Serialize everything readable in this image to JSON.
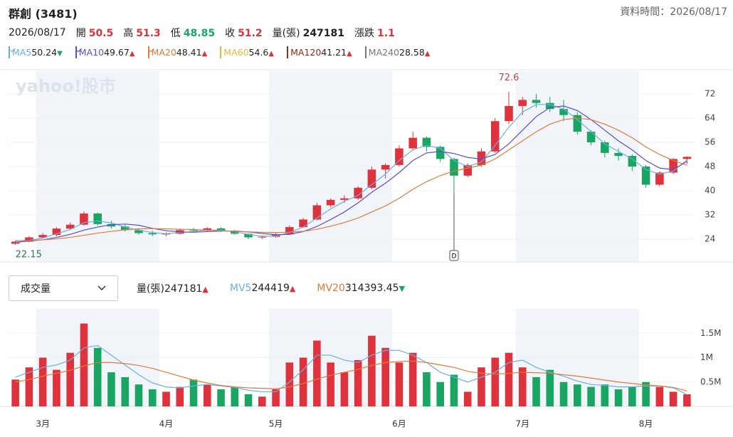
{
  "header": {
    "title": "群創 (3481)",
    "data_time": "資料時間：2026/08/17",
    "date": "2026/08/17",
    "quotes": [
      {
        "label": "開",
        "value": 50.5,
        "color": "#e0323c"
      },
      {
        "label": "高",
        "value": 51.3,
        "color": "#e0323c"
      },
      {
        "label": "低",
        "value": 48.85,
        "color": "#19a663"
      },
      {
        "label": "收",
        "value": 51.2,
        "color": "#e0323c"
      },
      {
        "label": "量(張)",
        "value": 247181,
        "color": "#222"
      },
      {
        "label": "漲跌",
        "value": 1.1,
        "color": "#e0323c"
      }
    ]
  },
  "chart_data": [
    {
      "type": "candlestick",
      "watermark": "yahoo!股市",
      "up_color": "#e0323c",
      "down_color": "#19a663",
      "grid": true,
      "ylim": [
        16.5,
        79.5
      ],
      "yticks": [
        24,
        32,
        40,
        48,
        56,
        64,
        72
      ],
      "candles": [
        [
          22.5,
          23.5,
          22.15,
          23.2
        ],
        [
          23.2,
          25,
          23,
          24.6
        ],
        [
          24.6,
          26,
          24.2,
          25.4
        ],
        [
          25.4,
          28,
          25,
          27.5
        ],
        [
          27.5,
          29.5,
          27,
          28.8
        ],
        [
          28.8,
          33.2,
          28.5,
          32.5
        ],
        [
          32.5,
          32.8,
          28.5,
          29
        ],
        [
          29,
          30,
          27.5,
          28.2
        ],
        [
          28.2,
          28.8,
          26.5,
          27
        ],
        [
          27,
          27.5,
          25.5,
          26
        ],
        [
          26,
          26.8,
          25,
          25.6
        ],
        [
          25.6,
          26.2,
          25,
          25.8
        ],
        [
          25.8,
          27.5,
          25.6,
          27
        ],
        [
          27,
          27.8,
          26.2,
          26.8
        ],
        [
          26.8,
          28,
          26.5,
          27.6
        ],
        [
          27.6,
          28,
          26.4,
          26.8
        ],
        [
          26.8,
          27,
          25.5,
          25.8
        ],
        [
          25.8,
          26,
          24,
          24.6
        ],
        [
          24.6,
          25.2,
          24,
          24.8
        ],
        [
          24.8,
          26,
          24.5,
          25.6
        ],
        [
          25.6,
          28.5,
          25.4,
          28
        ],
        [
          28,
          31,
          27.8,
          30.5
        ],
        [
          30.5,
          36,
          30.2,
          35.2
        ],
        [
          35.2,
          37.5,
          34.5,
          37
        ],
        [
          37,
          38.5,
          36,
          37.5
        ],
        [
          37.5,
          41.5,
          37,
          41
        ],
        [
          41,
          48,
          40.5,
          47
        ],
        [
          47,
          49,
          44,
          48.5
        ],
        [
          48.5,
          55,
          48,
          54
        ],
        [
          54,
          59.5,
          53.5,
          57.5
        ],
        [
          57.5,
          58,
          53,
          54.5
        ],
        [
          54.5,
          55,
          49.5,
          50.5
        ],
        [
          50.5,
          51,
          39.5,
          45
        ],
        [
          45,
          49,
          44.5,
          48.5
        ],
        [
          48.5,
          54,
          48,
          53
        ],
        [
          53,
          64,
          52.5,
          63
        ],
        [
          63,
          72.6,
          62,
          68
        ],
        [
          68,
          71,
          65,
          70
        ],
        [
          70,
          72,
          67.5,
          69
        ],
        [
          69,
          71,
          66,
          67
        ],
        [
          67,
          70,
          63,
          65
        ],
        [
          65,
          66,
          58.5,
          59.5
        ],
        [
          59.5,
          60,
          55,
          56
        ],
        [
          56,
          56.5,
          51,
          52.5
        ],
        [
          52.5,
          54,
          50,
          51.5
        ],
        [
          51.5,
          52,
          46.5,
          48
        ],
        [
          48,
          48.5,
          41,
          42
        ],
        [
          42,
          46.5,
          41.5,
          46
        ],
        [
          46,
          50.8,
          45.5,
          50.5
        ],
        [
          50.5,
          51.3,
          48.85,
          51.2
        ]
      ],
      "events": [
        {
          "index": 32,
          "label": "D"
        }
      ],
      "series": [
        {
          "name": "MA5",
          "color": "#6ab0e0",
          "checked": true,
          "arrow": "▼",
          "values": [
            22.8,
            23.6,
            24.4,
            25.8,
            27.2,
            29.5,
            30,
            29.4,
            28,
            27,
            26.2,
            25.8,
            26.2,
            26.5,
            27,
            27,
            26.5,
            25.6,
            25,
            25,
            26.2,
            28,
            31,
            34,
            36.5,
            38.5,
            42,
            45.5,
            50,
            53.5,
            55,
            54,
            50,
            48,
            49.5,
            55,
            61,
            66,
            68.5,
            68.5,
            67,
            63.5,
            59.5,
            55.5,
            53,
            50.5,
            47,
            45.5,
            46.5,
            50.24
          ]
        },
        {
          "name": "MA10",
          "color": "#5a4fcf",
          "checked": true,
          "arrow": "▲",
          "values": [
            23,
            23.4,
            23.8,
            24.6,
            25.6,
            27,
            28,
            28.8,
            29,
            28.6,
            27.6,
            26.8,
            26.4,
            26.3,
            26.5,
            26.7,
            26.7,
            26.4,
            25.9,
            25.5,
            25.6,
            26.5,
            28.2,
            30.5,
            33,
            36,
            39.5,
            42.5,
            46,
            50,
            52.5,
            53,
            52.3,
            51,
            50.5,
            52,
            55.5,
            60,
            64.5,
            67.5,
            68,
            66.5,
            63.5,
            60,
            56.5,
            53.5,
            50,
            47.5,
            47,
            49.67
          ]
        },
        {
          "name": "MA20",
          "color": "#e07a3a",
          "checked": true,
          "arrow": "▲",
          "values": [
            23.5,
            23.6,
            23.8,
            24.1,
            24.6,
            25.3,
            26,
            26.6,
            27.1,
            27.4,
            27.5,
            27.4,
            27.3,
            27.2,
            27,
            26.8,
            26.6,
            26.4,
            26.3,
            26.2,
            26.3,
            26.6,
            27.3,
            28.3,
            29.5,
            31,
            33,
            35,
            37.5,
            40.5,
            43,
            45,
            46.5,
            47.5,
            48.5,
            50.5,
            53.5,
            56.5,
            59.5,
            62,
            63.5,
            64,
            63.5,
            62,
            60,
            57.5,
            54.5,
            52,
            50,
            48.41
          ]
        },
        {
          "name": "MA60",
          "color": "#e8b93a",
          "checked": false,
          "arrow": "▲",
          "value": 54.6
        },
        {
          "name": "MA120",
          "color": "#8b2e1a",
          "checked": false,
          "arrow": "▲",
          "value": 41.21
        },
        {
          "name": "MA240",
          "color": "#777777",
          "checked": false,
          "arrow": "▲",
          "value": 28.58
        }
      ]
    },
    {
      "type": "bar",
      "selector": "成交量",
      "value_name": "量(張)",
      "value_arrow": "▲",
      "ylim": [
        0,
        2000000
      ],
      "yticks": [
        {
          "value": 500000,
          "label": "0.5M"
        },
        {
          "value": 1000000,
          "label": "1M"
        },
        {
          "value": 1500000,
          "label": "1.5M"
        }
      ],
      "categories": [
        null,
        null,
        "3月",
        null,
        null,
        null,
        null,
        null,
        null,
        null,
        null,
        "4月",
        null,
        null,
        null,
        null,
        null,
        null,
        null,
        "5月",
        null,
        null,
        null,
        null,
        null,
        null,
        null,
        null,
        "6月",
        null,
        null,
        null,
        null,
        null,
        null,
        null,
        null,
        "7月",
        null,
        null,
        null,
        null,
        null,
        null,
        null,
        null,
        "8月",
        null,
        null,
        null
      ],
      "values": [
        550000,
        800000,
        1000000,
        750000,
        1100000,
        1700000,
        1200000,
        700000,
        600000,
        450000,
        350000,
        300000,
        400000,
        550000,
        450000,
        350000,
        400000,
        250000,
        200000,
        350000,
        900000,
        1000000,
        1350000,
        900000,
        700000,
        950000,
        1450000,
        1200000,
        900000,
        1100000,
        700000,
        500000,
        650000,
        300000,
        800000,
        1000000,
        1100000,
        800000,
        600000,
        750000,
        500000,
        450000,
        400000,
        450000,
        350000,
        400000,
        500000,
        400000,
        300000,
        247181
      ],
      "series": [
        {
          "name": "MV5",
          "color": "#6ab0e0",
          "arrow": "▲",
          "values": [
            600000,
            700000,
            800000,
            850000,
            950000,
            1200000,
            1250000,
            1050000,
            850000,
            650000,
            480000,
            400000,
            380000,
            420000,
            450000,
            420000,
            390000,
            330000,
            300000,
            300000,
            500000,
            750000,
            1050000,
            1050000,
            950000,
            900000,
            1050000,
            1150000,
            1150000,
            1050000,
            900000,
            700000,
            600000,
            500000,
            600000,
            700000,
            900000,
            950000,
            800000,
            700000,
            620000,
            520000,
            450000,
            430000,
            400000,
            400000,
            420000,
            420000,
            380000,
            244419
          ]
        },
        {
          "name": "MV20",
          "color": "#e07a3a",
          "arrow": "▼",
          "values": [
            500000,
            550000,
            620000,
            680000,
            740000,
            830000,
            900000,
            900000,
            880000,
            840000,
            780000,
            700000,
            620000,
            540000,
            480000,
            430000,
            400000,
            380000,
            370000,
            360000,
            400000,
            470000,
            560000,
            640000,
            700000,
            760000,
            840000,
            900000,
            920000,
            930000,
            900000,
            850000,
            800000,
            720000,
            680000,
            660000,
            680000,
            700000,
            690000,
            680000,
            650000,
            620000,
            580000,
            540000,
            500000,
            470000,
            440000,
            420000,
            390000,
            314393.45
          ]
        }
      ]
    }
  ]
}
